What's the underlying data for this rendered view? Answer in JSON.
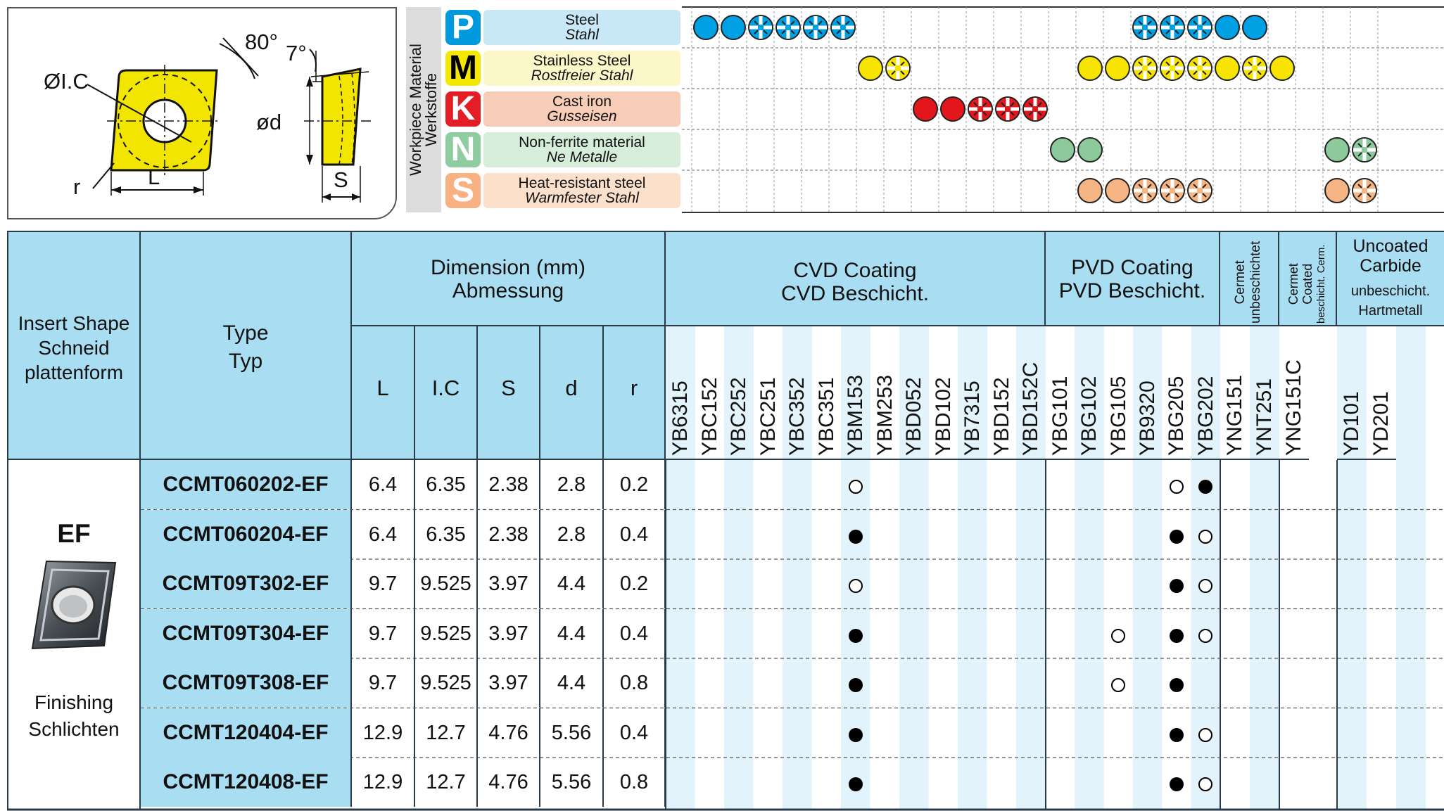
{
  "diagram": {
    "labels": {
      "ic": "ØI.C",
      "angle80": "80°",
      "angle7": "7°",
      "d": "ød",
      "r": "r",
      "L": "L",
      "S": "S"
    },
    "colors": {
      "insert": "#f2e600",
      "outline": "#111111"
    }
  },
  "workpiece": {
    "title_en": "Workpiece Material",
    "title_de": "Werkstoffe",
    "materials": [
      {
        "letter": "P",
        "en": "Steel",
        "de": "Stahl",
        "letter_color": "#0099dd",
        "bg": "#c8e8f8",
        "dot": "#00a0e4"
      },
      {
        "letter": "M",
        "en": "Stainless Steel",
        "de": "Rostfreier Stahl",
        "letter_color": "#f5e800",
        "bg": "#fbf7c8",
        "dot": "#f7e400"
      },
      {
        "letter": "K",
        "en": "Cast iron",
        "de": "Gusseisen",
        "letter_color": "#e31e24",
        "bg": "#f8cdb8",
        "dot": "#e3161c"
      },
      {
        "letter": "N",
        "en": "Non-ferrite material",
        "de": "Ne Metalle",
        "letter_color": "#8fcca0",
        "bg": "#d6edd9",
        "dot": "#8cca9c"
      },
      {
        "letter": "S",
        "en": "Heat-resistant steel",
        "de": "Warmfester Stahl",
        "letter_color": "#f7b183",
        "bg": "#fbe0cc",
        "dot": "#f5b483"
      }
    ],
    "symbols": [
      [
        [
          "full",
          0
        ],
        [
          "full",
          1
        ],
        [
          "cross",
          2
        ],
        [
          "cross",
          3
        ],
        [
          "cross",
          4
        ],
        [
          "cross",
          5
        ],
        [
          "cross",
          16
        ],
        [
          "cross",
          17
        ],
        [
          "cross",
          18
        ],
        [
          "full",
          19
        ],
        [
          "full",
          20
        ]
      ],
      [
        [
          "full",
          6
        ],
        [
          "cross",
          7
        ],
        [
          "full",
          14
        ],
        [
          "full",
          15
        ],
        [
          "cross",
          16
        ],
        [
          "cross",
          17
        ],
        [
          "cross",
          18
        ],
        [
          "full",
          19
        ],
        [
          "cross",
          20
        ],
        [
          "full",
          21
        ]
      ],
      [
        [
          "full",
          8
        ],
        [
          "full",
          9
        ],
        [
          "cross",
          10
        ],
        [
          "cross",
          11
        ],
        [
          "cross",
          12
        ]
      ],
      [
        [
          "full",
          13
        ],
        [
          "full",
          14
        ],
        [
          "full",
          23
        ],
        [
          "cross",
          24
        ]
      ],
      [
        [
          "full",
          14
        ],
        [
          "full",
          15
        ],
        [
          "cross",
          16
        ],
        [
          "cross",
          17
        ],
        [
          "cross",
          18
        ],
        [
          "full",
          23
        ],
        [
          "cross",
          24
        ]
      ]
    ]
  },
  "table": {
    "headers": {
      "shape_en": "Insert Shape",
      "shape_de1": "Schneid",
      "shape_de2": "plattenform",
      "type_en": "Type",
      "type_de": "Typ",
      "dim_en": "Dimension (mm)",
      "dim_de": "Abmessung",
      "dims": [
        "L",
        "I.C",
        "S",
        "d",
        "r"
      ],
      "cvd_en": "CVD Coating",
      "cvd_de": "CVD Beschicht.",
      "pvd_en": "PVD Coating",
      "pvd_de": "PVD Beschicht.",
      "cermet1": "Cermet",
      "cermet2": "unbeschichtet",
      "coated1": "Cermet",
      "coated2": "Coated",
      "coated3": "beschicht. Cerm.",
      "uncoated1": "Uncoated",
      "uncoated2": "Carbide",
      "uncoated3": "unbeschicht.",
      "uncoated4": "Hartmetall"
    },
    "grades": [
      "YB6315",
      "YBC152",
      "YBC252",
      "YBC251",
      "YBC352",
      "YBC351",
      "YBM153",
      "YBM253",
      "YBD052",
      "YBD102",
      "YB7315",
      "YBD152",
      "YBD152C",
      "YBG101",
      "YBG102",
      "YBG105",
      "YB9320",
      "YBG205",
      "YBG202",
      "YNG151",
      "YNT251",
      "YNG151C",
      "YD101",
      "YD201"
    ],
    "shape_code": "EF",
    "shape_desc_en": "Finishing",
    "shape_desc_de": "Schlichten",
    "rows": [
      {
        "type": "CCMT060202-EF",
        "L": "6.4",
        "IC": "6.35",
        "S": "2.38",
        "d": "2.8",
        "r": "0.2",
        "marks": [
          [
            6,
            "open"
          ],
          [
            17,
            "open"
          ],
          [
            18,
            "full"
          ]
        ]
      },
      {
        "type": "CCMT060204-EF",
        "L": "6.4",
        "IC": "6.35",
        "S": "2.38",
        "d": "2.8",
        "r": "0.4",
        "marks": [
          [
            6,
            "full"
          ],
          [
            17,
            "full"
          ],
          [
            18,
            "open"
          ]
        ]
      },
      {
        "type": "CCMT09T302-EF",
        "L": "9.7",
        "IC": "9.525",
        "S": "3.97",
        "d": "4.4",
        "r": "0.2",
        "marks": [
          [
            6,
            "open"
          ],
          [
            17,
            "full"
          ],
          [
            18,
            "open"
          ]
        ]
      },
      {
        "type": "CCMT09T304-EF",
        "L": "9.7",
        "IC": "9.525",
        "S": "3.97",
        "d": "4.4",
        "r": "0.4",
        "marks": [
          [
            6,
            "full"
          ],
          [
            15,
            "open"
          ],
          [
            17,
            "full"
          ],
          [
            18,
            "open"
          ]
        ]
      },
      {
        "type": "CCMT09T308-EF",
        "L": "9.7",
        "IC": "9.525",
        "S": "3.97",
        "d": "4.4",
        "r": "0.8",
        "marks": [
          [
            6,
            "full"
          ],
          [
            15,
            "open"
          ],
          [
            17,
            "full"
          ]
        ]
      },
      {
        "type": "CCMT120404-EF",
        "L": "12.9",
        "IC": "12.7",
        "S": "4.76",
        "d": "5.56",
        "r": "0.4",
        "marks": [
          [
            6,
            "full"
          ],
          [
            17,
            "full"
          ],
          [
            18,
            "open"
          ]
        ]
      },
      {
        "type": "CCMT120408-EF",
        "L": "12.9",
        "IC": "12.7",
        "S": "4.76",
        "d": "5.56",
        "r": "0.8",
        "marks": [
          [
            6,
            "full"
          ],
          [
            17,
            "full"
          ],
          [
            18,
            "open"
          ]
        ]
      }
    ]
  }
}
